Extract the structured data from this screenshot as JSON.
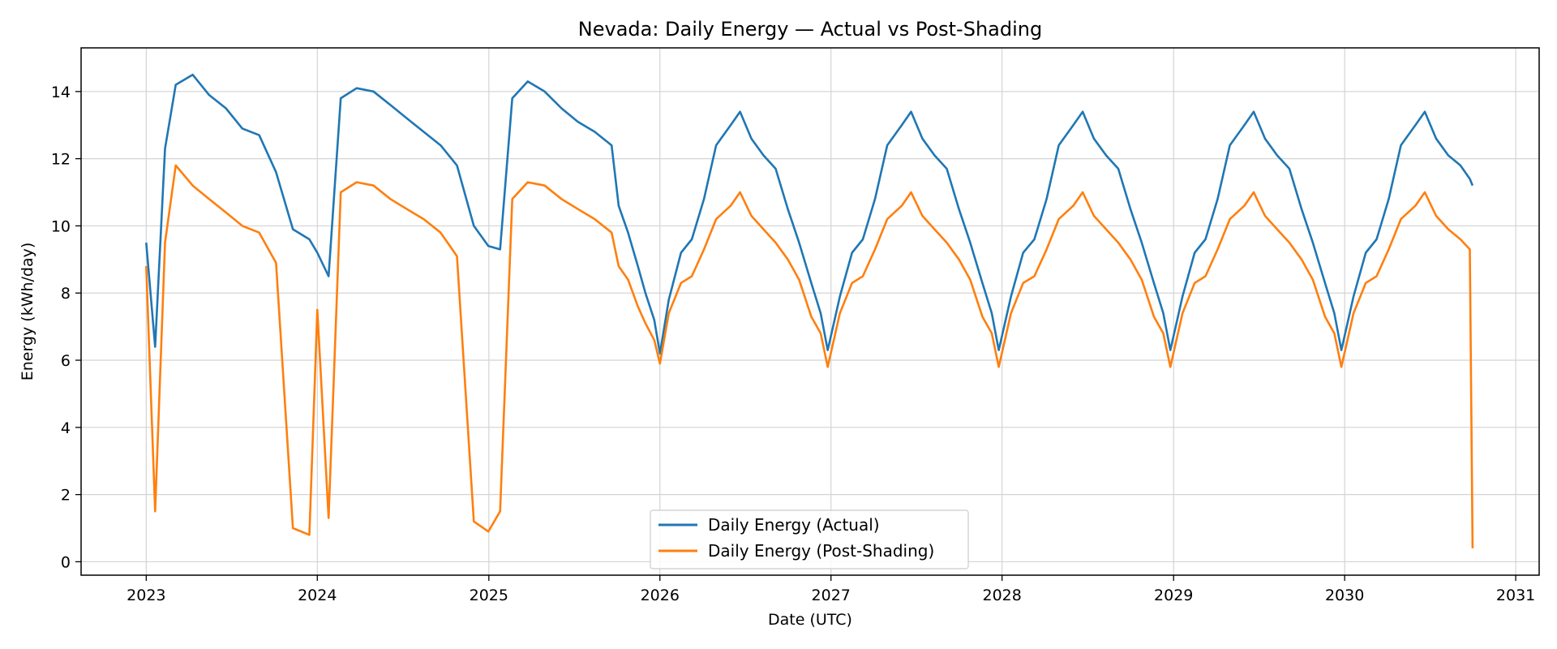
{
  "chart_data": {
    "type": "line",
    "title": "Nevada: Daily Energy — Actual vs Post-Shading",
    "xlabel": "Date (UTC)",
    "ylabel": "Energy (kWh/day)",
    "xlim": [
      "2022-08-15",
      "2031-02-20"
    ],
    "ylim": [
      -0.4,
      15.3
    ],
    "x_ticks": [
      "2023",
      "2024",
      "2025",
      "2026",
      "2027",
      "2028",
      "2029",
      "2030",
      "2031"
    ],
    "y_ticks": [
      0,
      2,
      4,
      6,
      8,
      10,
      12,
      14
    ],
    "grid": true,
    "legend_location": "lower center",
    "series": [
      {
        "name": "Daily Energy (Actual)",
        "color": "#1f77b4",
        "x": [
          "2023-01-01",
          "2023-01-20",
          "2023-02-10",
          "2023-03-05",
          "2023-04-10",
          "2023-05-15",
          "2023-06-20",
          "2023-07-25",
          "2023-08-30",
          "2023-10-05",
          "2023-11-10",
          "2023-12-15",
          "2024-01-01",
          "2024-01-25",
          "2024-02-20",
          "2024-03-25",
          "2024-04-30",
          "2024-06-05",
          "2024-07-10",
          "2024-08-15",
          "2024-09-20",
          "2024-10-25",
          "2024-11-30",
          "2024-12-31",
          "2025-01-25",
          "2025-02-20",
          "2025-03-25",
          "2025-04-30",
          "2025-06-05",
          "2025-07-10",
          "2025-08-15",
          "2025-09-20",
          "2025-10-05",
          "2025-10-25",
          "2025-11-15",
          "2025-12-01",
          "2025-12-20",
          "2026-01-01",
          "2026-01-20",
          "2026-02-15",
          "2026-03-10",
          "2026-04-05",
          "2026-05-01",
          "2026-06-01",
          "2026-06-21",
          "2026-07-15",
          "2026-08-10",
          "2026-09-05",
          "2026-10-01",
          "2026-10-25",
          "2026-11-20",
          "2026-12-10",
          "2026-12-25",
          "2027-01-20",
          "2027-02-15",
          "2027-03-10",
          "2027-04-05",
          "2027-05-01",
          "2027-06-01",
          "2027-06-21",
          "2027-07-15",
          "2027-08-10",
          "2027-09-05",
          "2027-10-01",
          "2027-10-25",
          "2027-11-20",
          "2027-12-10",
          "2027-12-25",
          "2028-01-20",
          "2028-02-15",
          "2028-03-10",
          "2028-04-05",
          "2028-05-01",
          "2028-06-01",
          "2028-06-21",
          "2028-07-15",
          "2028-08-10",
          "2028-09-05",
          "2028-10-01",
          "2028-10-25",
          "2028-11-20",
          "2028-12-10",
          "2028-12-25",
          "2029-01-20",
          "2029-02-15",
          "2029-03-10",
          "2029-04-05",
          "2029-05-01",
          "2029-06-01",
          "2029-06-21",
          "2029-07-15",
          "2029-08-10",
          "2029-09-05",
          "2029-10-01",
          "2029-10-25",
          "2029-11-20",
          "2029-12-10",
          "2029-12-25",
          "2030-01-20",
          "2030-02-15",
          "2030-03-10",
          "2030-04-05",
          "2030-05-01",
          "2030-06-01",
          "2030-06-21",
          "2030-07-15",
          "2030-08-10",
          "2030-09-05",
          "2030-09-25",
          "2030-10-01"
        ],
        "y": [
          9.5,
          6.4,
          12.3,
          14.2,
          14.5,
          13.9,
          13.5,
          12.9,
          12.7,
          11.6,
          9.9,
          9.6,
          9.2,
          8.5,
          13.8,
          14.1,
          14.0,
          13.6,
          13.2,
          12.8,
          12.4,
          11.8,
          10.0,
          9.4,
          9.3,
          13.8,
          14.3,
          14.0,
          13.5,
          13.1,
          12.8,
          12.4,
          10.6,
          9.8,
          8.8,
          8.0,
          7.2,
          6.2,
          7.8,
          9.2,
          9.6,
          10.8,
          12.4,
          13.0,
          13.4,
          12.6,
          12.1,
          11.7,
          10.5,
          9.5,
          8.3,
          7.4,
          6.3,
          7.9,
          9.2,
          9.6,
          10.8,
          12.4,
          13.0,
          13.4,
          12.6,
          12.1,
          11.7,
          10.5,
          9.5,
          8.3,
          7.4,
          6.3,
          7.9,
          9.2,
          9.6,
          10.8,
          12.4,
          13.0,
          13.4,
          12.6,
          12.1,
          11.7,
          10.5,
          9.5,
          8.3,
          7.4,
          6.3,
          7.9,
          9.2,
          9.6,
          10.8,
          12.4,
          13.0,
          13.4,
          12.6,
          12.1,
          11.7,
          10.5,
          9.5,
          8.3,
          7.4,
          6.3,
          7.9,
          9.2,
          9.6,
          10.8,
          12.4,
          13.0,
          13.4,
          12.6,
          12.1,
          11.8,
          11.4,
          11.2
        ]
      },
      {
        "name": "Daily Energy (Post-Shading)",
        "color": "#ff7f0e",
        "x": [
          "2023-01-01",
          "2023-01-20",
          "2023-02-10",
          "2023-03-05",
          "2023-04-10",
          "2023-05-15",
          "2023-06-20",
          "2023-07-25",
          "2023-08-30",
          "2023-10-05",
          "2023-11-10",
          "2023-12-15",
          "2024-01-01",
          "2024-01-25",
          "2024-02-20",
          "2024-03-25",
          "2024-04-30",
          "2024-06-05",
          "2024-07-10",
          "2024-08-15",
          "2024-09-20",
          "2024-10-25",
          "2024-11-30",
          "2024-12-31",
          "2025-01-25",
          "2025-02-20",
          "2025-03-25",
          "2025-04-30",
          "2025-06-05",
          "2025-07-10",
          "2025-08-15",
          "2025-09-20",
          "2025-10-05",
          "2025-10-25",
          "2025-11-15",
          "2025-12-01",
          "2025-12-20",
          "2026-01-01",
          "2026-01-20",
          "2026-02-15",
          "2026-03-10",
          "2026-04-05",
          "2026-05-01",
          "2026-06-01",
          "2026-06-21",
          "2026-07-15",
          "2026-08-10",
          "2026-09-05",
          "2026-10-01",
          "2026-10-25",
          "2026-11-20",
          "2026-12-10",
          "2026-12-25",
          "2027-01-20",
          "2027-02-15",
          "2027-03-10",
          "2027-04-05",
          "2027-05-01",
          "2027-06-01",
          "2027-06-21",
          "2027-07-15",
          "2027-08-10",
          "2027-09-05",
          "2027-10-01",
          "2027-10-25",
          "2027-11-20",
          "2027-12-10",
          "2027-12-25",
          "2028-01-20",
          "2028-02-15",
          "2028-03-10",
          "2028-04-05",
          "2028-05-01",
          "2028-06-01",
          "2028-06-21",
          "2028-07-15",
          "2028-08-10",
          "2028-09-05",
          "2028-10-01",
          "2028-10-25",
          "2028-11-20",
          "2028-12-10",
          "2028-12-25",
          "2029-01-20",
          "2029-02-15",
          "2029-03-10",
          "2029-04-05",
          "2029-05-01",
          "2029-06-01",
          "2029-06-21",
          "2029-07-15",
          "2029-08-10",
          "2029-09-05",
          "2029-10-01",
          "2029-10-25",
          "2029-11-20",
          "2029-12-10",
          "2029-12-25",
          "2030-01-20",
          "2030-02-15",
          "2030-03-10",
          "2030-04-05",
          "2030-05-01",
          "2030-06-01",
          "2030-06-21",
          "2030-07-15",
          "2030-08-10",
          "2030-09-05",
          "2030-09-25",
          "2030-10-01"
        ],
        "y": [
          8.8,
          1.5,
          9.5,
          11.8,
          11.2,
          10.8,
          10.4,
          10.0,
          9.8,
          8.9,
          1.0,
          0.8,
          7.5,
          1.3,
          11.0,
          11.3,
          11.2,
          10.8,
          10.5,
          10.2,
          9.8,
          9.1,
          1.2,
          0.9,
          1.5,
          10.8,
          11.3,
          11.2,
          10.8,
          10.5,
          10.2,
          9.8,
          8.8,
          8.4,
          7.6,
          7.1,
          6.6,
          5.9,
          7.4,
          8.3,
          8.5,
          9.3,
          10.2,
          10.6,
          11.0,
          10.3,
          9.9,
          9.5,
          9.0,
          8.4,
          7.3,
          6.8,
          5.8,
          7.4,
          8.3,
          8.5,
          9.3,
          10.2,
          10.6,
          11.0,
          10.3,
          9.9,
          9.5,
          9.0,
          8.4,
          7.3,
          6.8,
          5.8,
          7.4,
          8.3,
          8.5,
          9.3,
          10.2,
          10.6,
          11.0,
          10.3,
          9.9,
          9.5,
          9.0,
          8.4,
          7.3,
          6.8,
          5.8,
          7.4,
          8.3,
          8.5,
          9.3,
          10.2,
          10.6,
          11.0,
          10.3,
          9.9,
          9.5,
          9.0,
          8.4,
          7.3,
          6.8,
          5.8,
          7.4,
          8.3,
          8.5,
          9.3,
          10.2,
          10.6,
          11.0,
          10.3,
          9.9,
          9.6,
          9.3,
          0.4
        ]
      }
    ]
  }
}
